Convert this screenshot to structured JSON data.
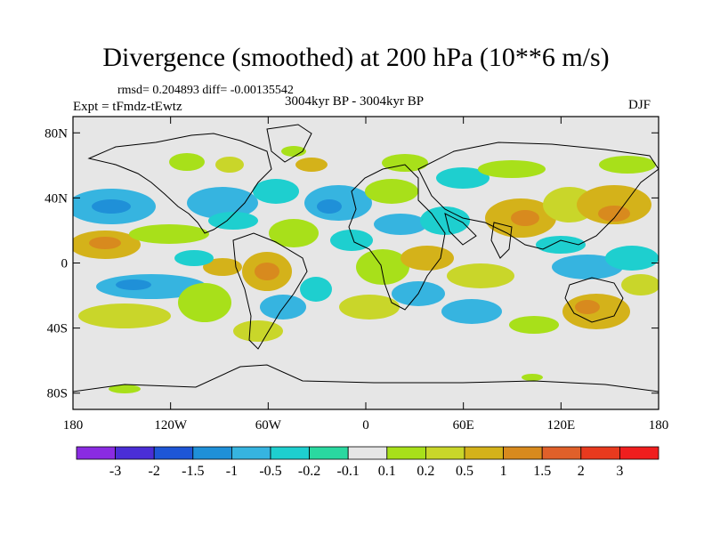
{
  "figure": {
    "title": "Divergence (smoothed) at 200 hPa (10**6 m/s)",
    "stats": "rmsd= 0.204893  diff= -0.00135542",
    "expt": "Expt = tFmdz-tEwtz",
    "period": "3004kyr BP - 3004kyr BP",
    "season": "DJF"
  },
  "axes": {
    "lat_ticks": [
      "80N",
      "40N",
      "0",
      "40S",
      "80S"
    ],
    "lon_ticks": [
      "180",
      "120W",
      "60W",
      "0",
      "60E",
      "120E",
      "180"
    ]
  },
  "colorbar": {
    "labels": [
      "-3",
      "-2",
      "-1.5",
      "-1",
      "-0.5",
      "-0.2",
      "-0.1",
      "0.1",
      "0.2",
      "0.5",
      "1",
      "1.5",
      "2",
      "3"
    ],
    "colors": [
      "#8a2be2",
      "#4a2ed6",
      "#1e56d6",
      "#1f90d8",
      "#36b4e0",
      "#1ecfcf",
      "#2ad8a0",
      "#e6e6e6",
      "#a8e01a",
      "#c9d62a",
      "#d4b21a",
      "#d88a1e",
      "#e0602a",
      "#e83a1e",
      "#f01e1e"
    ]
  },
  "chart_data": {
    "type": "heatmap",
    "title": "Divergence (smoothed) at 200 hPa (10**6 m/s)",
    "units": "10**6 m/s",
    "lon_range": [
      -180,
      180
    ],
    "lat_range": [
      -90,
      90
    ],
    "levels": [
      -3,
      -2,
      -1.5,
      -1,
      -0.5,
      -0.2,
      -0.1,
      0.1,
      0.2,
      0.5,
      1,
      1.5,
      2,
      3
    ],
    "anomalies": [
      {
        "name": "n-pacific-blue",
        "lon": -160,
        "lat": 35,
        "value": -0.4
      },
      {
        "name": "trop-pacific-orange",
        "lon": -165,
        "lat": 5,
        "value": 0.6
      },
      {
        "name": "e-pacific-yellow",
        "lon": -120,
        "lat": 15,
        "value": 0.25
      },
      {
        "name": "s-pacific-blue",
        "lon": -150,
        "lat": -15,
        "value": -0.3
      },
      {
        "name": "s-pacific-yellow",
        "lon": -140,
        "lat": -40,
        "value": 0.2
      },
      {
        "name": "central-america-blue",
        "lon": -100,
        "lat": 30,
        "value": -0.3
      },
      {
        "name": "atlantic-blue",
        "lon": -30,
        "lat": 30,
        "value": -0.35
      },
      {
        "name": "amazon-orange",
        "lon": -60,
        "lat": -10,
        "value": 0.6
      },
      {
        "name": "s-america-blue",
        "lon": -75,
        "lat": -25,
        "value": -0.3
      },
      {
        "name": "s-atlantic-yellow",
        "lon": -20,
        "lat": -25,
        "value": 0.25
      },
      {
        "name": "africa-yellow",
        "lon": 15,
        "lat": 5,
        "value": 0.3
      },
      {
        "name": "arabia-blue",
        "lon": 50,
        "lat": 25,
        "value": -0.3
      },
      {
        "name": "indian-ocean-yellow",
        "lon": 75,
        "lat": -5,
        "value": 0.3
      },
      {
        "name": "s-indian-blue",
        "lon": 60,
        "lat": -30,
        "value": -0.3
      },
      {
        "name": "china-orange",
        "lon": 105,
        "lat": 30,
        "value": 0.6
      },
      {
        "name": "w-pacific-orange",
        "lon": 150,
        "lat": 40,
        "value": 0.5
      },
      {
        "name": "maritime-blue",
        "lon": 125,
        "lat": 5,
        "value": -0.3
      },
      {
        "name": "australia-orange",
        "lon": 130,
        "lat": -25,
        "value": 0.5
      },
      {
        "name": "arctic-yellow",
        "lon": 10,
        "lat": 75,
        "value": 0.25
      },
      {
        "name": "siberia-yellow",
        "lon": 90,
        "lat": 70,
        "value": 0.2
      },
      {
        "name": "antarctic-yellow",
        "lon": 170,
        "lat": -75,
        "value": 0.2
      }
    ]
  }
}
